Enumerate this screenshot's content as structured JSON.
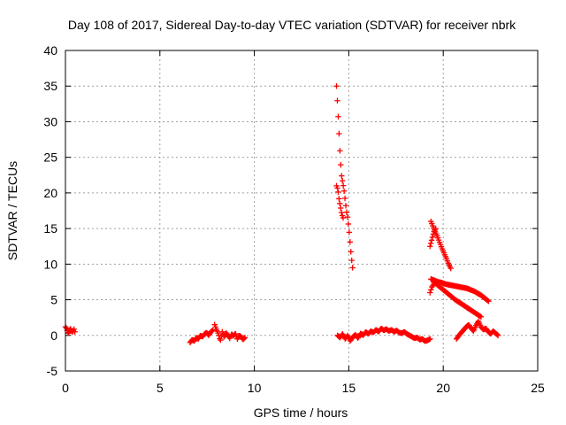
{
  "chart_data": {
    "type": "scatter",
    "title": "Day 108 of 2017, Sidereal Day-to-day VTEC variation (SDTVAR) for receiver nbrk",
    "xlabel": "GPS time / hours",
    "ylabel": "SDTVAR / TECUs",
    "xlim": [
      0,
      25
    ],
    "ylim": [
      -5,
      40
    ],
    "xticks": [
      0,
      5,
      10,
      15,
      20,
      25
    ],
    "yticks": [
      -5,
      0,
      5,
      10,
      15,
      20,
      25,
      30,
      35,
      40
    ],
    "grid": true,
    "marker": "+",
    "color": "#ff0000",
    "series": [
      {
        "name": "sdtvar",
        "segments": [
          {
            "t0": 0.0,
            "t1": 0.5,
            "v": [
              1.2,
              1.0,
              0.6,
              0.2,
              0.5,
              1.0,
              0.8,
              0.4,
              0.6,
              0.9,
              0.5
            ]
          },
          {
            "t0": 6.6,
            "t1": 7.8,
            "v": [
              -1.0,
              -0.6,
              -0.8,
              -0.3,
              -0.5,
              0.0,
              -0.2,
              0.2,
              0.4,
              0.0,
              0.5,
              0.7
            ]
          },
          {
            "t0": 7.9,
            "t1": 9.5,
            "v": [
              1.5,
              0.8,
              0.2,
              -0.8,
              0.5,
              -0.3,
              0.4,
              0.0,
              -0.4,
              0.2,
              -0.1,
              0.3,
              -0.5,
              0.0,
              -0.2,
              -0.6,
              -0.3
            ]
          },
          {
            "t0": 14.35,
            "t1": 15.2,
            "v": [
              35.0,
              32.0,
              28.5,
              25.0,
              22.5,
              21.5,
              20.5,
              19.0,
              17.5,
              16.5,
              15.0,
              13.0,
              11.0,
              9.5
            ]
          },
          {
            "t0": 14.35,
            "t1": 14.7,
            "v": [
              21.0,
              20.5,
              19.0,
              18.0,
              17.0,
              16.5
            ]
          },
          {
            "t0": 14.4,
            "t1": 19.3,
            "v": [
              0.0,
              -0.3,
              0.2,
              -0.5,
              0.0,
              -0.8,
              -0.2,
              0.1,
              -0.4,
              0.3,
              0.0,
              0.5,
              0.2,
              0.6,
              0.4,
              0.8,
              0.5,
              1.0,
              0.7,
              0.9,
              0.6,
              0.8,
              0.5,
              0.7,
              0.4,
              0.3,
              0.5,
              0.2,
              0.0,
              -0.2,
              -0.4,
              -0.3,
              -0.6,
              -0.5,
              -0.8,
              -0.7,
              -0.5
            ]
          },
          {
            "t0": 19.35,
            "t1": 20.4,
            "v": [
              16.0,
              15.2,
              14.5,
              13.8,
              13.0,
              12.2,
              11.5,
              10.8,
              10.0,
              9.4
            ]
          },
          {
            "t0": 19.3,
            "t1": 19.6,
            "v": [
              12.5,
              13.5,
              14.5,
              15.0
            ]
          },
          {
            "t0": 19.35,
            "t1": 22.4,
            "v": [
              7.9,
              7.7,
              7.5,
              7.4,
              7.2,
              7.1,
              7.0,
              6.9,
              6.8,
              6.7,
              6.6,
              6.4,
              6.2,
              5.9,
              5.6,
              5.2,
              4.8
            ]
          },
          {
            "t0": 19.5,
            "t1": 22.0,
            "v": [
              7.5,
              7.0,
              6.5,
              6.0,
              5.5,
              5.0,
              4.6,
              4.2,
              3.8,
              3.4,
              3.0,
              2.6
            ]
          },
          {
            "t0": 19.3,
            "t1": 19.5,
            "v": [
              6.0,
              6.8,
              7.2
            ]
          },
          {
            "t0": 20.7,
            "t1": 22.9,
            "v": [
              -0.5,
              0.0,
              0.4,
              0.8,
              1.2,
              1.5,
              1.0,
              0.6,
              1.4,
              2.0,
              1.2,
              0.8,
              1.0,
              0.5,
              0.2,
              0.6,
              0.3,
              0.0
            ]
          }
        ]
      }
    ]
  }
}
